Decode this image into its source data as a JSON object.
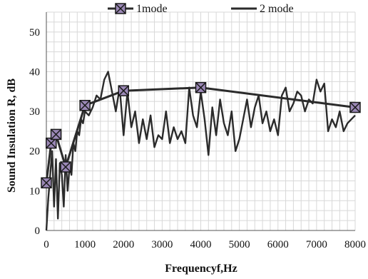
{
  "chart_data": {
    "type": "line",
    "xlabel": "Frequencyf,Hz",
    "ylabel": "Sound Insulation R, dB",
    "xlim": [
      0,
      8000
    ],
    "ylim": [
      0,
      55
    ],
    "xticks": [
      0,
      1000,
      2000,
      3000,
      4000,
      5000,
      6000,
      7000,
      8000
    ],
    "yticks": [
      0,
      10,
      20,
      30,
      40,
      50
    ],
    "grid": {
      "major": true,
      "minor": true,
      "minor_x_step": 200,
      "minor_y_step": 2.5
    },
    "legend": {
      "position": "top",
      "orientation": "horizontal"
    },
    "colors": {
      "line": "#2b2b2b",
      "marker_fill": "#9b88b6",
      "grid": "#d8d8d8"
    },
    "series": [
      {
        "name": "1mode",
        "style": "line-with-square-x-markers",
        "x": [
          0,
          125,
          250,
          500,
          1000,
          2000,
          4000,
          8000
        ],
        "y": [
          12,
          22,
          24.2,
          16,
          31.5,
          35.2,
          36,
          31
        ]
      },
      {
        "name": "2 mode",
        "style": "line",
        "x": [
          0,
          50,
          100,
          150,
          200,
          250,
          300,
          350,
          400,
          450,
          500,
          550,
          600,
          650,
          700,
          750,
          800,
          850,
          900,
          950,
          1000,
          1100,
          1200,
          1300,
          1400,
          1500,
          1600,
          1700,
          1800,
          1900,
          2000,
          2100,
          2200,
          2300,
          2400,
          2500,
          2600,
          2700,
          2800,
          2900,
          3000,
          3100,
          3200,
          3300,
          3400,
          3500,
          3600,
          3700,
          3800,
          3900,
          4000,
          4100,
          4200,
          4300,
          4400,
          4500,
          4600,
          4700,
          4800,
          4900,
          5000,
          5100,
          5200,
          5300,
          5400,
          5500,
          5600,
          5700,
          5800,
          5900,
          6000,
          6100,
          6200,
          6300,
          6400,
          6500,
          6600,
          6700,
          6800,
          6900,
          7000,
          7100,
          7200,
          7300,
          7400,
          7500,
          7600,
          7700,
          7800,
          7900,
          8000
        ],
        "y": [
          0,
          8,
          14,
          20,
          6,
          18,
          3,
          17,
          14,
          6,
          19,
          10,
          16,
          14,
          22,
          20,
          25,
          24,
          28,
          27,
          30,
          29,
          31,
          34,
          33,
          38,
          40,
          35,
          30,
          36,
          24,
          35,
          26,
          30,
          22,
          28,
          23,
          29,
          21,
          24,
          23,
          30,
          22,
          26,
          23,
          25,
          22,
          36,
          29,
          26,
          35,
          28,
          19,
          31,
          24,
          33,
          27,
          24,
          30,
          20,
          23,
          28,
          33,
          26,
          31,
          34,
          27,
          30,
          25,
          28,
          24,
          34,
          36,
          30,
          32,
          35,
          34,
          30,
          33,
          32,
          38,
          35,
          37,
          25,
          28,
          26,
          30,
          25,
          27,
          28,
          29
        ]
      }
    ]
  }
}
